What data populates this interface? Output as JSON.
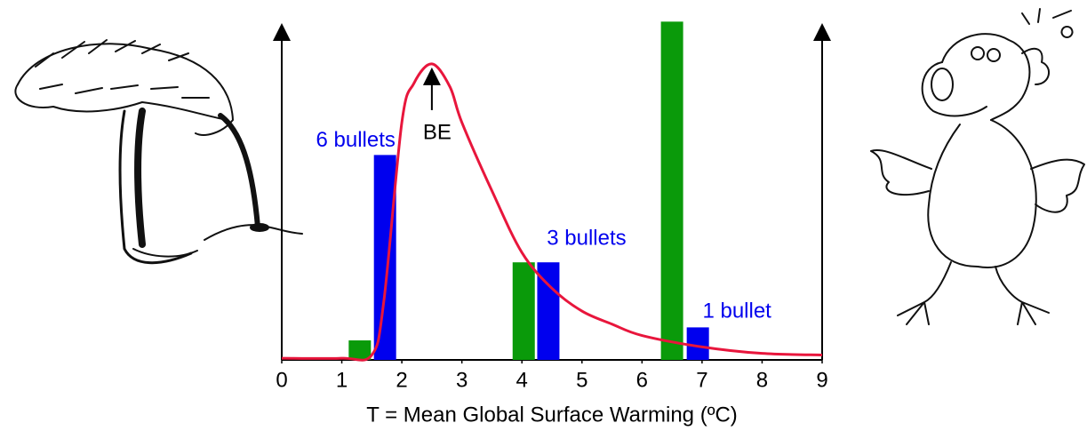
{
  "chart_data": {
    "type": "bar",
    "xlabel": "T = Mean Global Surface Warming (ºC)",
    "xlim": [
      0,
      9
    ],
    "xticks": [
      0,
      1,
      2,
      3,
      4,
      5,
      6,
      7,
      8,
      9
    ],
    "ylim": [
      0,
      10.3
    ],
    "bar_width": 0.37,
    "series": [
      {
        "type": "bar",
        "color": "#0a9a0a",
        "x": [
          1.3,
          4.03,
          6.5
        ],
        "values": [
          0.6,
          3,
          10.4
        ]
      },
      {
        "type": "bar",
        "color": "#0000ee",
        "x": [
          1.72,
          4.44,
          6.93
        ],
        "values": [
          6.3,
          3,
          1
        ],
        "value_labels": [
          "6 bullets",
          "3 bullets",
          "1 bullet"
        ]
      },
      {
        "type": "line",
        "color": "#e8163c",
        "x": [
          0,
          1,
          1.5,
          1.7,
          2,
          2.2,
          2.5,
          2.8,
          3,
          3.5,
          4,
          4.5,
          5,
          5.5,
          6,
          7,
          8,
          9
        ],
        "values": [
          0.05,
          0.05,
          0.15,
          1.8,
          7.3,
          8.5,
          9.1,
          8.4,
          7.3,
          5.2,
          3.3,
          2.2,
          1.5,
          1.1,
          0.75,
          0.4,
          0.2,
          0.15
        ]
      }
    ],
    "annotation": "BE"
  }
}
